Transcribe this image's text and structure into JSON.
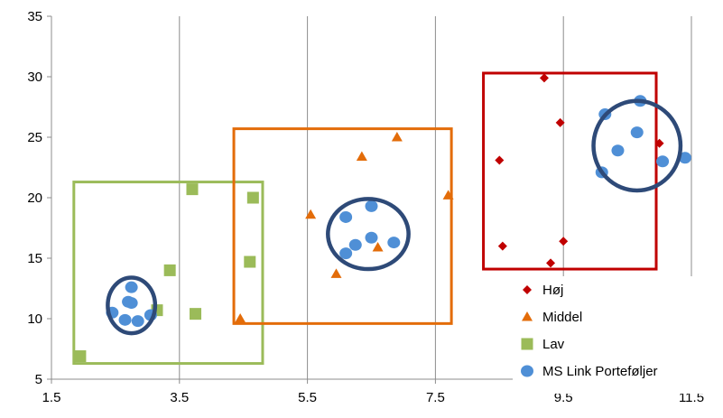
{
  "chart_data": {
    "type": "scatter",
    "title": "",
    "xlabel": "",
    "ylabel": "",
    "xlim": [
      1.5,
      11.5
    ],
    "ylim": [
      5,
      35
    ],
    "xticks": [
      "1.5",
      "3.5",
      "5.5",
      "7.5",
      "9.5",
      "11.5"
    ],
    "yticks": [
      "5",
      "10",
      "15",
      "20",
      "25",
      "30",
      "35"
    ],
    "grid": {
      "vertical": true,
      "horizontal": false
    },
    "legend_position": "bottom-right",
    "series": [
      {
        "name": "Høj",
        "marker": "diamond",
        "color": "#C00000",
        "points": [
          [
            9.2,
            29.9
          ],
          [
            9.45,
            26.2
          ],
          [
            11.0,
            24.5
          ],
          [
            8.5,
            23.1
          ],
          [
            8.55,
            16.0
          ],
          [
            9.5,
            16.4
          ],
          [
            9.3,
            14.6
          ]
        ]
      },
      {
        "name": "Middel",
        "marker": "triangle",
        "color": "#E36C09",
        "points": [
          [
            6.9,
            25.0
          ],
          [
            6.35,
            23.4
          ],
          [
            7.7,
            20.2
          ],
          [
            5.55,
            18.6
          ],
          [
            6.6,
            15.9
          ],
          [
            5.95,
            13.7
          ],
          [
            4.45,
            10.0
          ]
        ]
      },
      {
        "name": "Lav",
        "marker": "square",
        "color": "#9BBB59",
        "points": [
          [
            3.7,
            20.7
          ],
          [
            4.65,
            20.0
          ],
          [
            4.6,
            14.7
          ],
          [
            3.35,
            14.0
          ],
          [
            3.75,
            10.4
          ],
          [
            3.15,
            10.7
          ],
          [
            1.95,
            6.9
          ]
        ]
      },
      {
        "name": "MS Link Porteføljer",
        "marker": "circle",
        "color": "#4F8FD6",
        "points": [
          [
            10.15,
            26.9
          ],
          [
            10.7,
            28.0
          ],
          [
            10.65,
            25.4
          ],
          [
            10.35,
            23.9
          ],
          [
            10.1,
            22.1
          ],
          [
            11.05,
            23.0
          ],
          [
            11.4,
            23.3
          ],
          [
            6.1,
            18.4
          ],
          [
            6.5,
            19.3
          ],
          [
            6.5,
            16.7
          ],
          [
            6.25,
            16.1
          ],
          [
            6.1,
            15.4
          ],
          [
            6.85,
            16.3
          ],
          [
            2.75,
            12.6
          ],
          [
            2.7,
            11.4
          ],
          [
            2.75,
            11.3
          ],
          [
            2.45,
            10.5
          ],
          [
            2.65,
            9.9
          ],
          [
            2.85,
            9.8
          ],
          [
            3.05,
            10.3
          ]
        ]
      }
    ],
    "annotations": {
      "rectangles": [
        {
          "color": "#9BBB59",
          "x": [
            1.85,
            4.8
          ],
          "y": [
            6.3,
            21.3
          ]
        },
        {
          "color": "#E36C09",
          "x": [
            4.35,
            7.75
          ],
          "y": [
            9.6,
            25.7
          ]
        },
        {
          "color": "#C00000",
          "x": [
            8.25,
            10.95
          ],
          "y": [
            14.1,
            30.3
          ]
        }
      ],
      "ellipses": [
        {
          "color": "#2E4A78",
          "cx": 2.75,
          "cy": 11.1,
          "rx": 0.37,
          "ry": 2.3
        },
        {
          "color": "#2E4A78",
          "cx": 6.45,
          "cy": 17.0,
          "rx": 0.63,
          "ry": 2.9
        },
        {
          "color": "#2E4A78",
          "cx": 10.65,
          "cy": 24.3,
          "rx": 0.68,
          "ry": 3.7
        }
      ]
    }
  }
}
